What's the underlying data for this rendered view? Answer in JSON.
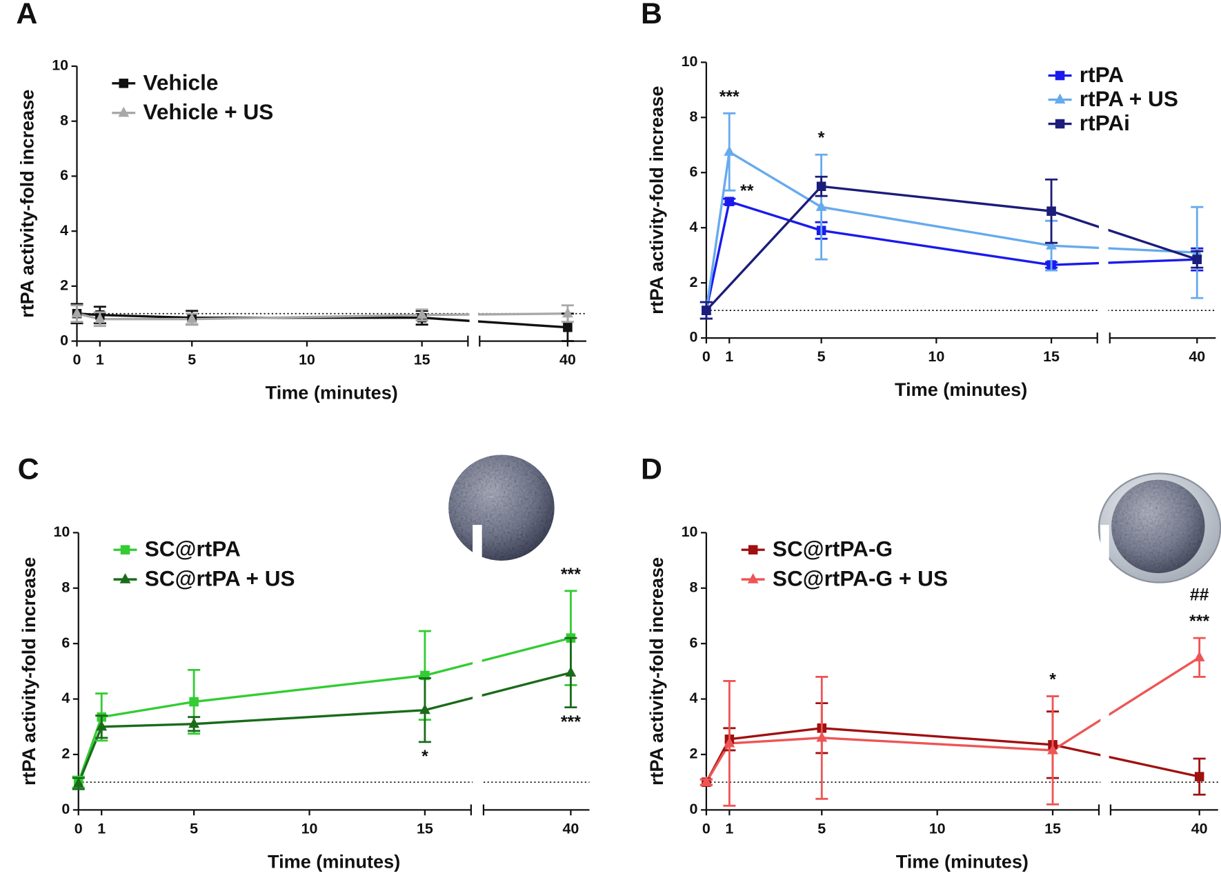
{
  "chart_data": [
    {
      "type": "line",
      "panel": "A",
      "xlabel": "Time (minutes)",
      "ylabel": "rtPA activity-fold increase",
      "x": [
        0,
        1,
        5,
        15,
        40
      ],
      "xlim": [
        0,
        40
      ],
      "axis_break": [
        17,
        38
      ],
      "xticks": [
        0,
        1,
        5,
        10,
        15,
        40
      ],
      "ylim": [
        0,
        10
      ],
      "yticks": [
        0,
        2,
        4,
        6,
        8,
        10
      ],
      "reference_line": 1,
      "legend": "upper left",
      "series": [
        {
          "name": "Vehicle",
          "color": "#111111",
          "marker": "square",
          "values": [
            1.0,
            0.95,
            0.85,
            0.85,
            0.5
          ],
          "errors": [
            0.35,
            0.3,
            0.25,
            0.25,
            0.5
          ]
        },
        {
          "name": "Vehicle + US",
          "color": "#a8a8a8",
          "marker": "triangle",
          "values": [
            1.0,
            0.8,
            0.8,
            0.95,
            1.0
          ],
          "errors": [
            0.3,
            0.25,
            0.2,
            0.2,
            0.3
          ]
        }
      ],
      "annotations": []
    },
    {
      "type": "line",
      "panel": "B",
      "xlabel": "Time (minutes)",
      "ylabel": "rtPA activity-fold increase",
      "x": [
        0,
        1,
        5,
        15,
        40
      ],
      "xlim": [
        0,
        40
      ],
      "axis_break": [
        17,
        38
      ],
      "xticks": [
        0,
        1,
        5,
        10,
        15,
        40
      ],
      "ylim": [
        0,
        10
      ],
      "yticks": [
        0,
        2,
        4,
        6,
        8,
        10
      ],
      "reference_line": 1,
      "legend": "upper right",
      "series": [
        {
          "name": "rtPA",
          "color": "#1a1aee",
          "marker": "square",
          "values": [
            1.0,
            4.95,
            3.9,
            2.65,
            2.85
          ],
          "errors": [
            0.3,
            0.1,
            0.3,
            0.1,
            0.4
          ]
        },
        {
          "name": "rtPA + US",
          "color": "#66aaee",
          "marker": "triangle",
          "values": [
            1.0,
            6.75,
            4.75,
            3.35,
            3.1
          ],
          "errors": [
            0.3,
            1.4,
            1.9,
            0.9,
            1.65
          ]
        },
        {
          "name": "rtPAi",
          "color": "#1c1c7a",
          "marker": "square",
          "x": [
            0,
            5,
            15,
            40
          ],
          "values": [
            1.0,
            5.5,
            4.6,
            2.85
          ],
          "errors": [
            0.3,
            0.35,
            1.15,
            0.3
          ]
        }
      ],
      "annotations": [
        {
          "text": "***",
          "series": 1,
          "point": 1,
          "position": "above"
        },
        {
          "text": "**",
          "series": 0,
          "point": 1,
          "position": "right"
        },
        {
          "text": "*",
          "series": 1,
          "point": 2,
          "position": "above"
        }
      ]
    },
    {
      "type": "line",
      "panel": "C",
      "xlabel": "Time (minutes)",
      "ylabel": "rtPA activity-fold increase",
      "x": [
        0,
        1,
        5,
        15,
        40
      ],
      "xlim": [
        0,
        40
      ],
      "axis_break": [
        17,
        38
      ],
      "xticks": [
        0,
        1,
        5,
        10,
        15,
        40
      ],
      "ylim": [
        0,
        10
      ],
      "yticks": [
        0,
        2,
        4,
        6,
        8,
        10
      ],
      "reference_line": 1,
      "legend": "upper left",
      "series": [
        {
          "name": "SC@rtPA",
          "color": "#33cc33",
          "marker": "square",
          "values": [
            1.0,
            3.35,
            3.9,
            4.85,
            6.2
          ],
          "errors": [
            0.2,
            0.85,
            1.15,
            1.6,
            1.7
          ]
        },
        {
          "name": "SC@rtPA + US",
          "color": "#1a6b1a",
          "marker": "triangle",
          "values": [
            0.95,
            3.0,
            3.1,
            3.6,
            4.95
          ],
          "errors": [
            0.2,
            0.4,
            0.25,
            1.15,
            1.25
          ]
        }
      ],
      "annotations": [
        {
          "text": "***",
          "series": 0,
          "point": 4,
          "position": "above"
        },
        {
          "text": "***",
          "series": 1,
          "point": 4,
          "position": "below"
        },
        {
          "text": "*",
          "series": 1,
          "point": 3,
          "position": "below"
        }
      ]
    },
    {
      "type": "line",
      "panel": "D",
      "xlabel": "Time (minutes)",
      "ylabel": "rtPA activity-fold increase",
      "x": [
        0,
        1,
        5,
        15,
        40
      ],
      "xlim": [
        0,
        40
      ],
      "axis_break": [
        17,
        38
      ],
      "xticks": [
        0,
        1,
        5,
        10,
        15,
        40
      ],
      "ylim": [
        0,
        10
      ],
      "yticks": [
        0,
        2,
        4,
        6,
        8,
        10
      ],
      "reference_line": 1,
      "legend": "upper left",
      "series": [
        {
          "name": "SC@rtPA-G",
          "color": "#a01010",
          "marker": "square",
          "values": [
            1.0,
            2.55,
            2.95,
            2.35,
            1.2
          ],
          "errors": [
            0.1,
            0.4,
            0.9,
            1.2,
            0.65
          ]
        },
        {
          "name": "SC@rtPA-G + US",
          "color": "#ee5555",
          "marker": "triangle",
          "values": [
            1.0,
            2.4,
            2.6,
            2.15,
            5.5
          ],
          "errors": [
            0.1,
            2.25,
            2.2,
            1.95,
            0.7
          ]
        }
      ],
      "annotations": [
        {
          "text": "*",
          "series": 1,
          "point": 3,
          "position": "above"
        },
        {
          "text": "***",
          "series": 1,
          "point": 4,
          "position": "above"
        },
        {
          "text": "##",
          "series": 1,
          "point": 4,
          "position": "above"
        }
      ]
    }
  ]
}
